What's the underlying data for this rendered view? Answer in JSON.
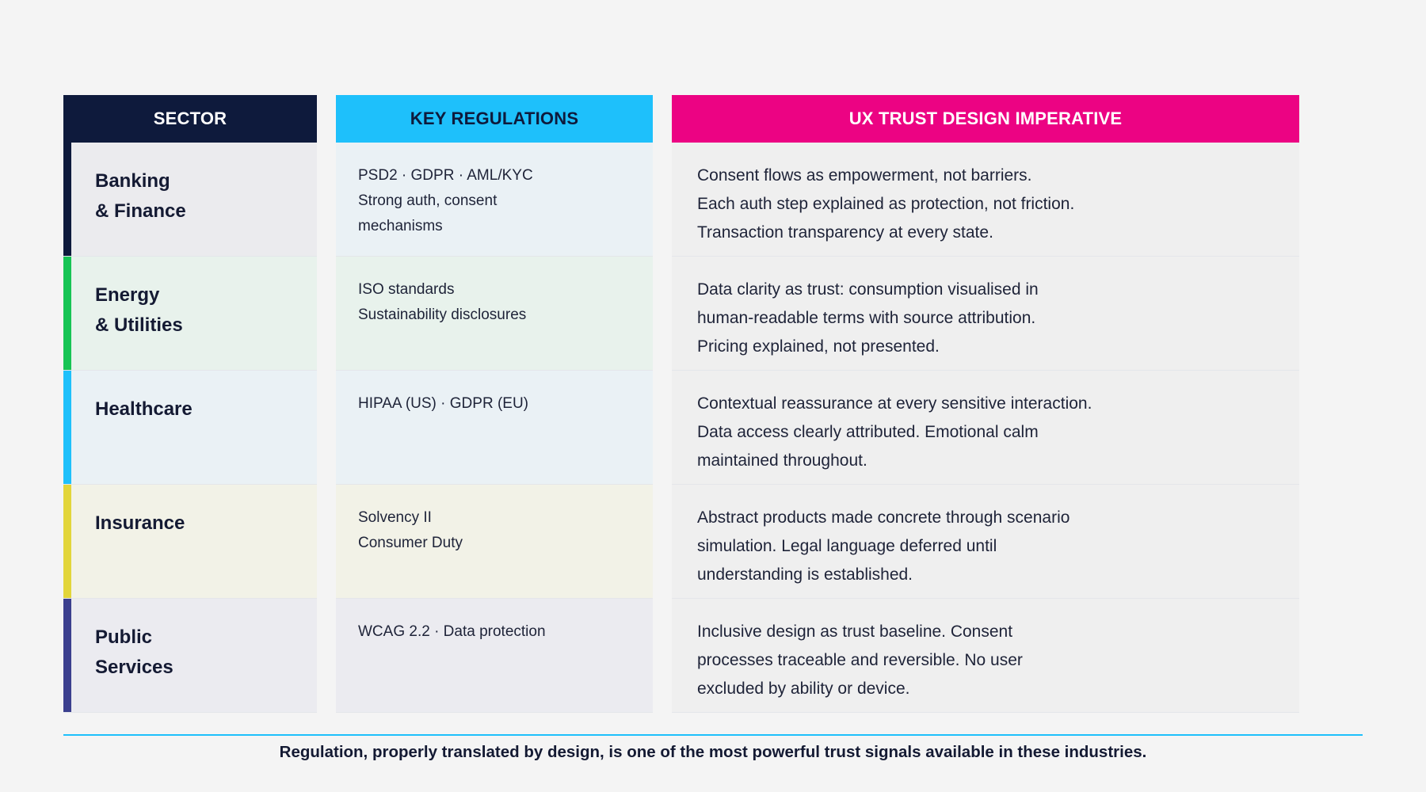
{
  "headers": {
    "sector": "SECTOR",
    "regulations": "KEY REGULATIONS",
    "imperative": "UX TRUST DESIGN IMPERATIVE"
  },
  "colors": {
    "sector_header": "#0e1a3c",
    "regulations_header": "#1ec0fb",
    "imperative_header": "#ec0383"
  },
  "rows": [
    {
      "sector": "Banking\n& Finance",
      "accent": "#0e1a3c",
      "sector_bg": "#ebebee",
      "reg_bg": "#eaf1f5",
      "regulations": [
        "PSD2 · GDPR · AML/KYC",
        "Strong auth, consent",
        "mechanisms"
      ],
      "imperative": [
        "Consent flows as empowerment, not barriers.",
        "Each auth step explained as protection, not friction.",
        "Transaction transparency at every state."
      ]
    },
    {
      "sector": "Energy\n& Utilities",
      "accent": "#16c454",
      "sector_bg": "#e8f2ec",
      "reg_bg": "#e8f2ec",
      "regulations": [
        "ISO standards",
        "Sustainability disclosures"
      ],
      "imperative": [
        "Data clarity as trust: consumption visualised in",
        "human-readable terms with source attribution.",
        "Pricing explained, not presented."
      ]
    },
    {
      "sector": "Healthcare",
      "accent": "#1ec0fb",
      "sector_bg": "#eaf1f5",
      "reg_bg": "#eaf1f5",
      "regulations": [
        "HIPAA (US) · GDPR (EU)"
      ],
      "imperative": [
        "Contextual reassurance at every sensitive interaction.",
        "Data access clearly attributed. Emotional calm",
        "maintained throughout."
      ]
    },
    {
      "sector": "Insurance",
      "accent": "#e2d53a",
      "sector_bg": "#f2f2e7",
      "reg_bg": "#f2f2e7",
      "regulations": [
        "Solvency II",
        "Consumer Duty"
      ],
      "imperative": [
        "Abstract products made concrete through scenario",
        "simulation. Legal language deferred until",
        "understanding is established."
      ]
    },
    {
      "sector": "Public\nServices",
      "accent": "#3b3f8e",
      "sector_bg": "#ebebf0",
      "reg_bg": "#ebebf0",
      "regulations": [
        "WCAG 2.2 · Data protection"
      ],
      "imperative": [
        "Inclusive design as trust baseline. Consent",
        "processes traceable and reversible. No user",
        "excluded by ability or device."
      ]
    }
  ],
  "footer": "Regulation, properly translated by design, is one of the most powerful trust signals available in these industries."
}
